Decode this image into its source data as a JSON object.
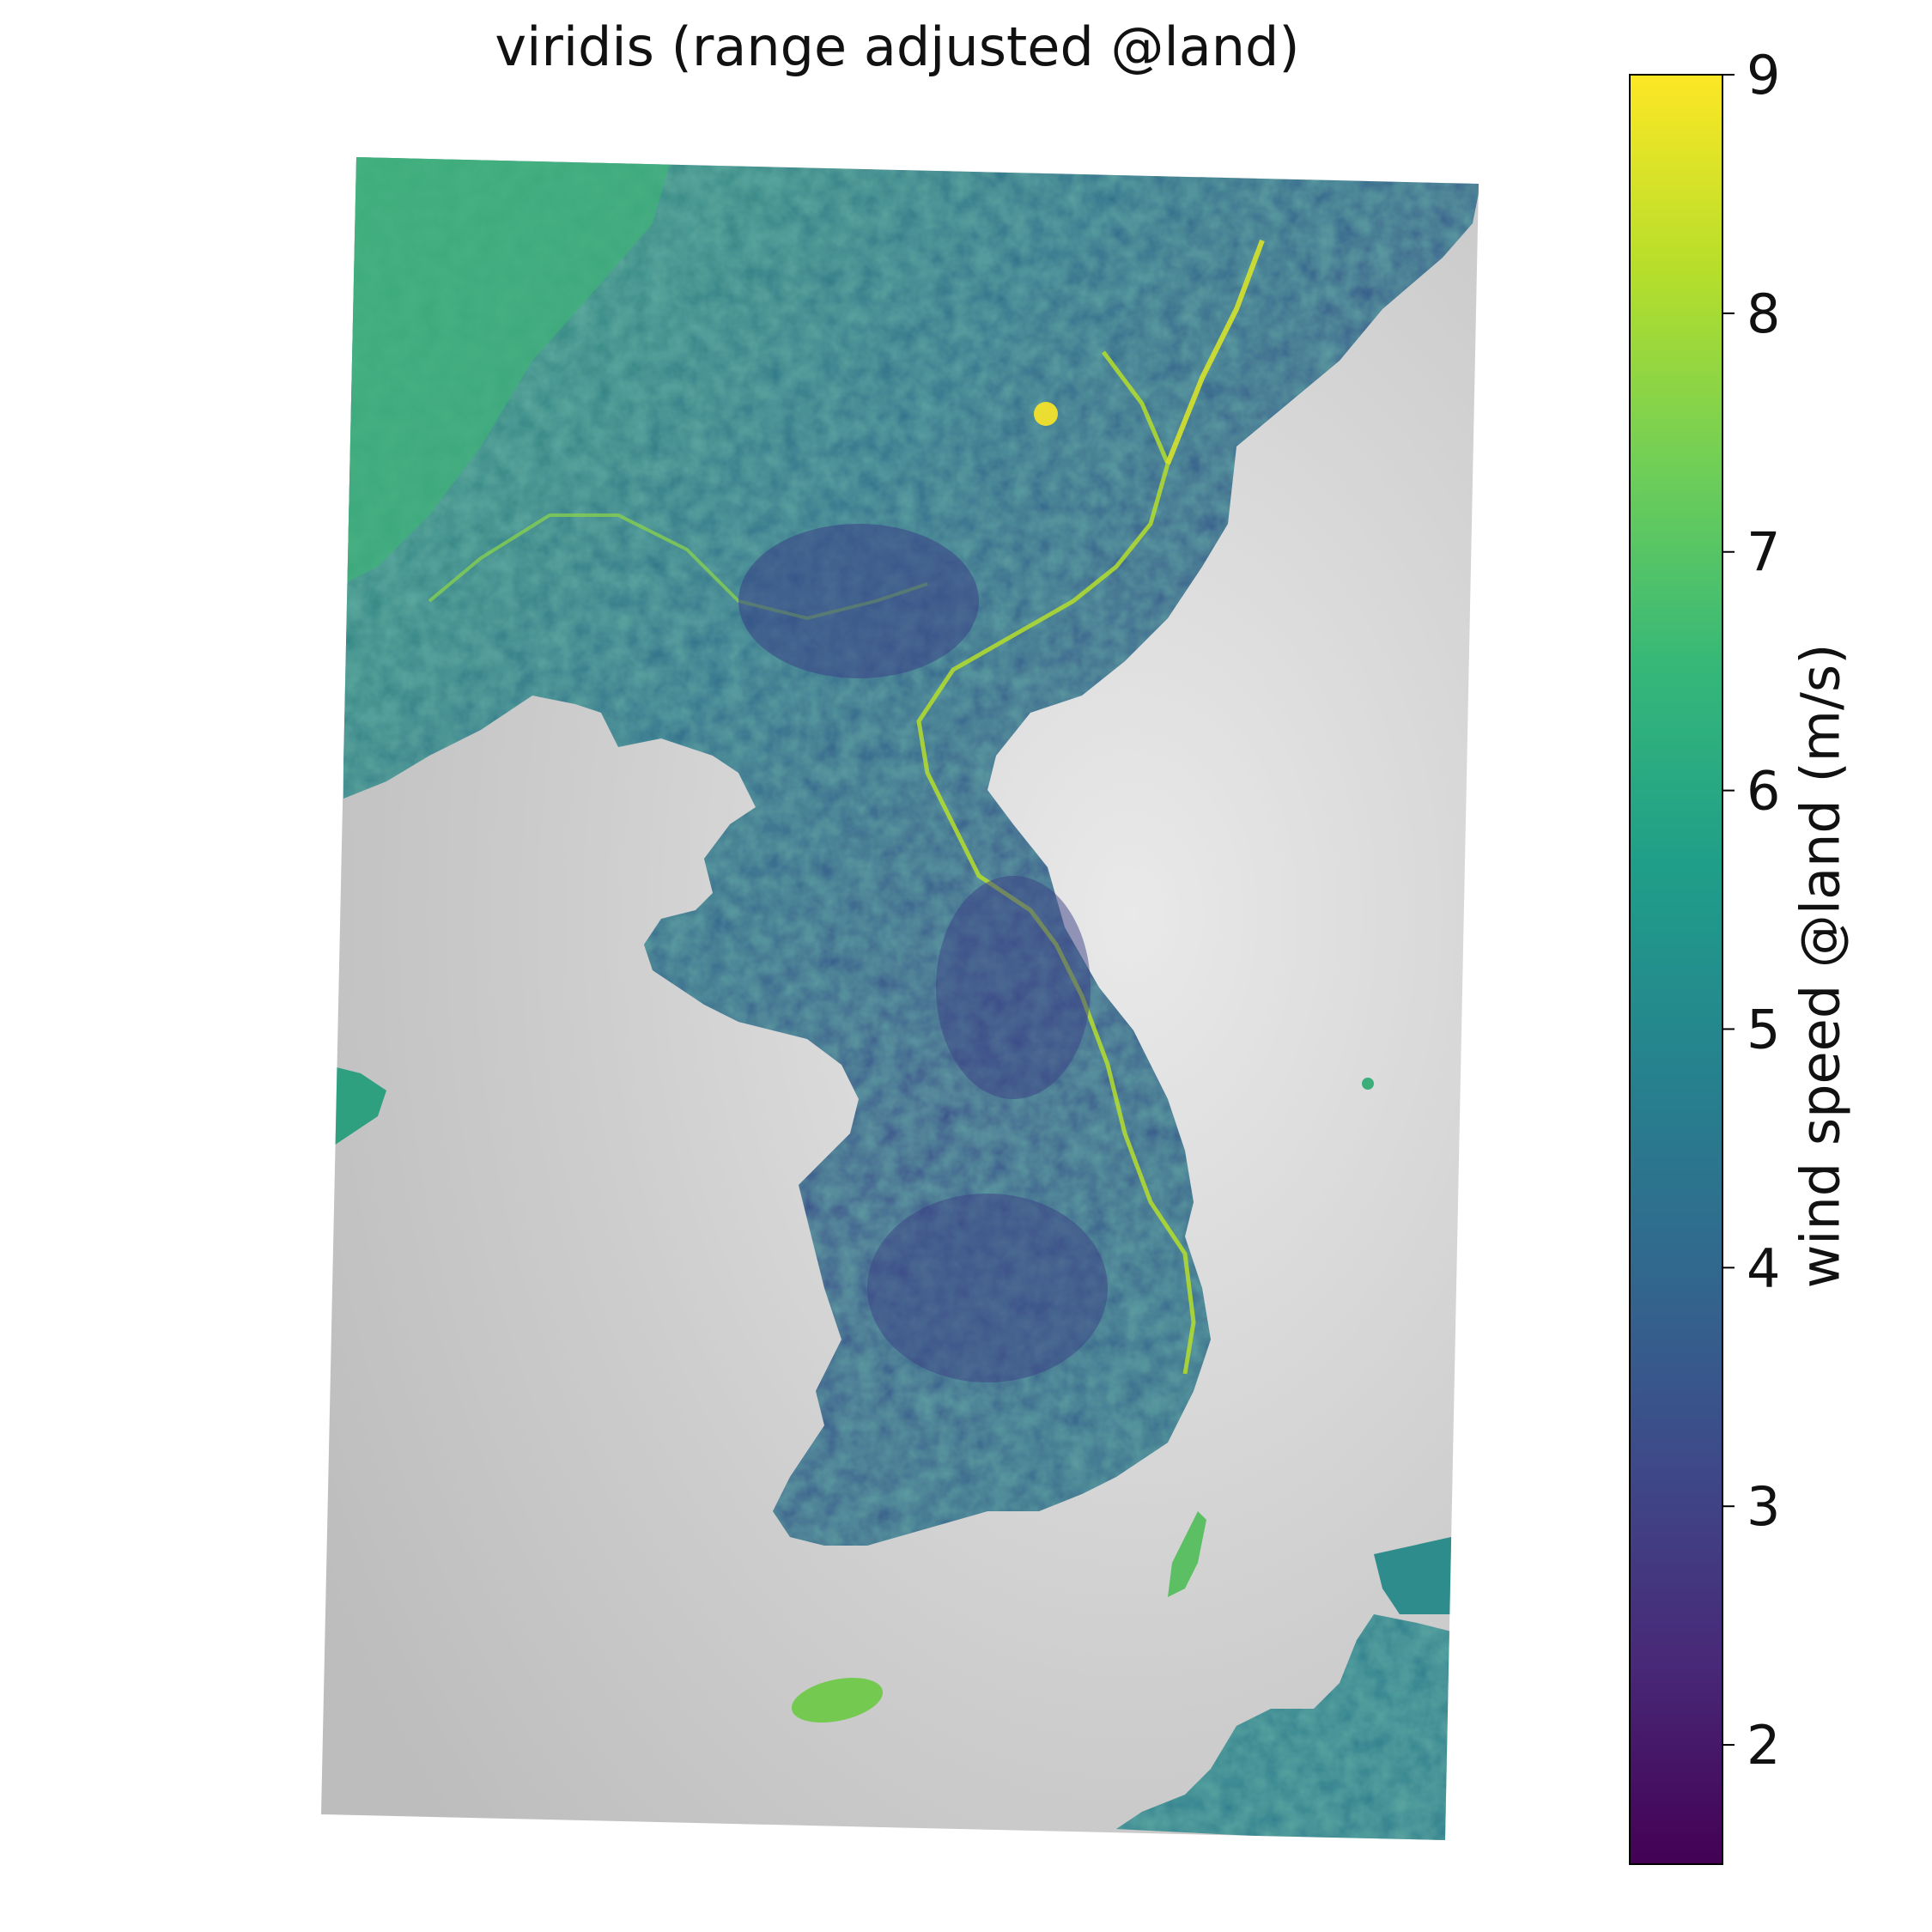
{
  "title": "viridis (range adjusted @land)",
  "colorbar": {
    "label": "wind speed @land (m/s)",
    "colormap": "viridis",
    "vmin": 1.5,
    "vmax": 9,
    "ticks": [
      "2",
      "3",
      "4",
      "5",
      "6",
      "7",
      "8",
      "9"
    ],
    "stops": [
      "#440154",
      "#482878",
      "#3e4989",
      "#31688e",
      "#26828e",
      "#1f9e89",
      "#35b779",
      "#6ece58",
      "#b5de2b",
      "#fde725"
    ]
  },
  "map": {
    "region": "Korean Peninsula",
    "land_color_scale": "viridis",
    "sea_color": "#cfcfcf",
    "sea_shading": "grayscale"
  }
}
